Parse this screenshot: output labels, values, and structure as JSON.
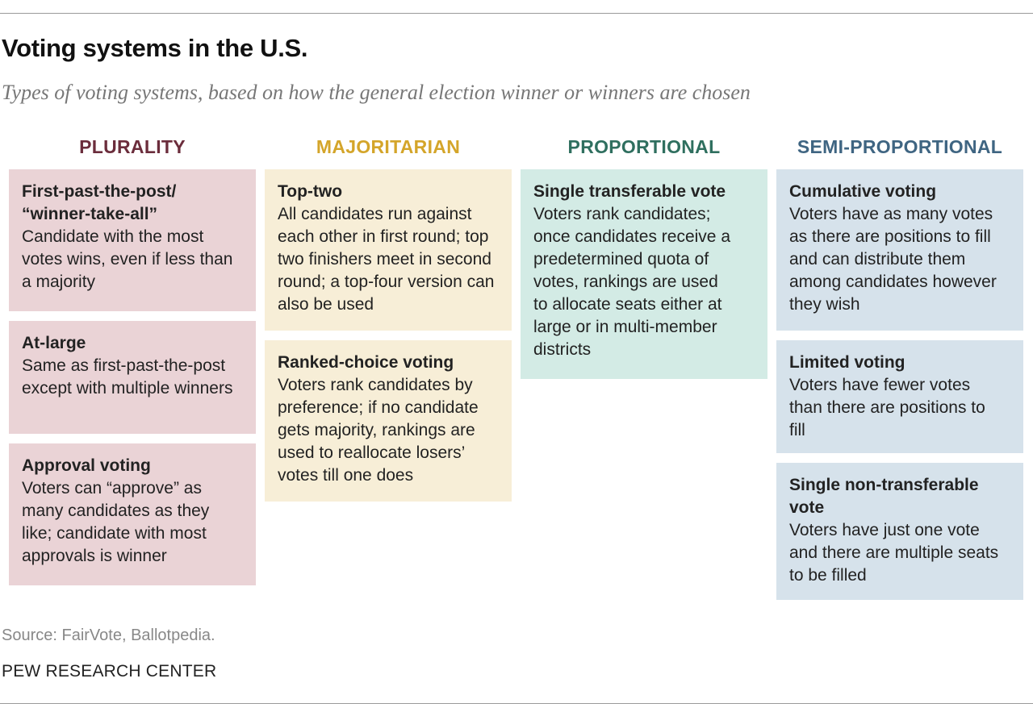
{
  "title": "Voting systems in the U.S.",
  "subtitle": "Types of voting systems, based on how the general election winner or winners are chosen",
  "columns": [
    {
      "heading": "PLURALITY",
      "heading_color": "#6b2d3c",
      "card_color": "#ead3d6",
      "cards": [
        {
          "title": "First-past-the-post/ “winner-take-all”",
          "body": "Candidate with the most votes wins, even if less than a majority"
        },
        {
          "title": "At-large",
          "body": "Same as first-past-the-post except with multiple winners"
        },
        {
          "title": "Approval voting",
          "body": "Voters can “approve” as many candidates as they like; candidate with most approvals is winner"
        }
      ]
    },
    {
      "heading": "MAJORITARIAN",
      "heading_color": "#d4a52a",
      "card_color": "#f7eed7",
      "cards": [
        {
          "title": "Top-two",
          "body": "All candidates run against each other in first round; top two finishers meet in second round; a top-four version can also be used"
        },
        {
          "title": "Ranked-choice voting",
          "body": "Voters rank candidates by preference; if no candidate gets majority, rankings are used to reallocate losers’ votes till one does"
        }
      ]
    },
    {
      "heading": "PROPORTIONAL",
      "heading_color": "#2f6f5f",
      "card_color": "#d3ebe5",
      "cards": [
        {
          "title": "Single transferable vote",
          "body": "Voters rank candidates; once candidates receive a predetermined quota of votes, rankings are used to allocate seats either at large or in multi-member districts"
        }
      ]
    },
    {
      "heading": "SEMI-PROPORTIONAL",
      "heading_color": "#3f6582",
      "card_color": "#d6e2eb",
      "cards": [
        {
          "title": "Cumulative voting",
          "body": "Voters have as many votes as there are positions to fill and can distribute them among candidates however they wish"
        },
        {
          "title": "Limited voting",
          "body": "Voters have fewer votes than there are positions to fill"
        },
        {
          "title": "Single non-transferable vote",
          "body": "Voters have just one vote and there are multiple seats to be filled"
        }
      ]
    }
  ],
  "source": "Source: FairVote, Ballotpedia.",
  "organization": "PEW RESEARCH CENTER"
}
